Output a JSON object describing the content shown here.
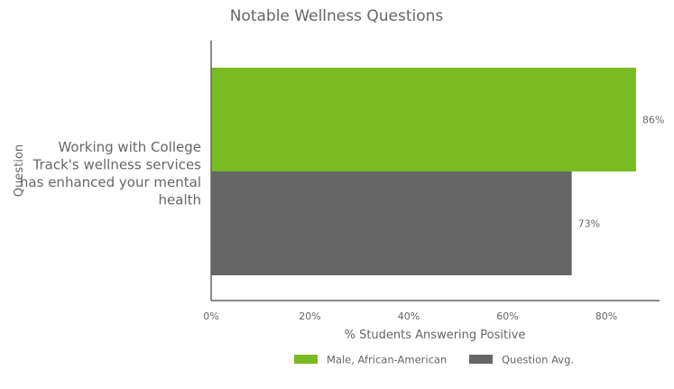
{
  "chart_data": {
    "type": "bar",
    "orientation": "horizontal",
    "title": "Notable Wellness Questions",
    "xlabel": "% Students Answering Positive",
    "ylabel": "Question",
    "categories": [
      "Working with College Track's wellness services has enhanced your mental health"
    ],
    "category_label_lines": [
      "Working with College",
      "Track's wellness services",
      "has enhanced your mental",
      "health"
    ],
    "series": [
      {
        "name": "Male, African-American",
        "values": [
          86
        ],
        "labels": [
          "86%"
        ],
        "color": "#7aba22"
      },
      {
        "name": "Question Avg.",
        "values": [
          73
        ],
        "labels": [
          "73%"
        ],
        "color": "#666666"
      }
    ],
    "xlim": [
      0,
      90
    ],
    "xticks": [
      0,
      20,
      40,
      60,
      80
    ],
    "xtick_labels": [
      "0%",
      "20%",
      "40%",
      "60%",
      "80%"
    ],
    "grid": false,
    "legend_position": "bottom"
  }
}
